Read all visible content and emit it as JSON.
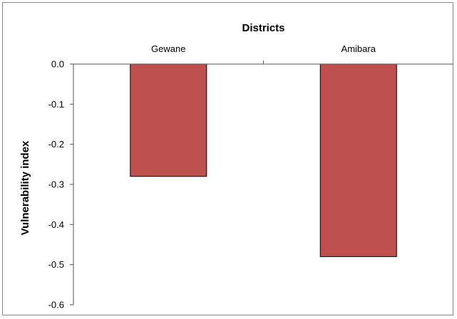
{
  "chart_data": {
    "type": "bar",
    "xlabel": "Districts",
    "ylabel": "Vulnerability index",
    "categories": [
      "Gewane",
      "Amibara"
    ],
    "values": [
      -0.28,
      -0.48
    ],
    "ylim": [
      -0.6,
      0.0
    ],
    "yticks": [
      0.0,
      -0.1,
      -0.2,
      -0.3,
      -0.4,
      -0.5,
      -0.6
    ],
    "ytick_labels": [
      "0.0",
      "-0.1",
      "-0.2",
      "-0.3",
      "-0.4",
      "-0.5",
      "-0.6"
    ],
    "x_axis_position": "top",
    "grid": false,
    "legend": "none",
    "bar_color": "#c0504d",
    "bar_edge_color": "#000000"
  }
}
